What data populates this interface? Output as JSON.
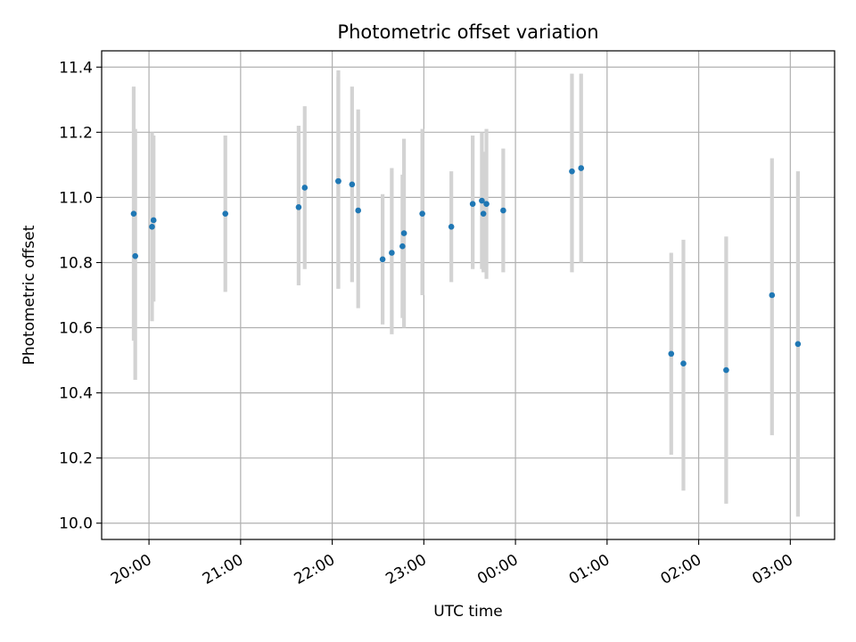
{
  "chart_data": {
    "type": "scatter",
    "title": "Photometric offset variation",
    "xlabel": "UTC time",
    "ylabel": "Photometric offset",
    "x_unit": "hh:mm UTC",
    "xlim": [
      "19:29",
      "03:29"
    ],
    "ylim": [
      9.95,
      11.45
    ],
    "grid": true,
    "x_ticks": [
      "20:00",
      "21:00",
      "22:00",
      "23:00",
      "00:00",
      "01:00",
      "02:00",
      "03:00"
    ],
    "y_ticks": [
      "10.0",
      "10.2",
      "10.4",
      "10.6",
      "10.8",
      "11.0",
      "11.2",
      "11.4"
    ],
    "colors": {
      "points": "#1f77b4",
      "error_bars": "#d3d3d3",
      "grid": "#b0b0b0"
    },
    "series": [
      {
        "points": [
          {
            "x": "19:50",
            "y": 10.95,
            "ylo": 10.56,
            "yhi": 11.34
          },
          {
            "x": "19:51",
            "y": 10.82,
            "ylo": 10.44,
            "yhi": 11.21
          },
          {
            "x": "20:02",
            "y": 10.91,
            "ylo": 10.62,
            "yhi": 11.2
          },
          {
            "x": "20:03",
            "y": 10.93,
            "ylo": 10.68,
            "yhi": 11.19
          },
          {
            "x": "20:50",
            "y": 10.95,
            "ylo": 10.71,
            "yhi": 11.19
          },
          {
            "x": "21:38",
            "y": 10.97,
            "ylo": 10.73,
            "yhi": 11.22
          },
          {
            "x": "21:42",
            "y": 11.03,
            "ylo": 10.78,
            "yhi": 11.28
          },
          {
            "x": "22:04",
            "y": 11.05,
            "ylo": 10.72,
            "yhi": 11.39
          },
          {
            "x": "22:04",
            "y": 11.05,
            "ylo": 10.72,
            "yhi": 11.37
          },
          {
            "x": "22:13",
            "y": 11.04,
            "ylo": 10.74,
            "yhi": 11.34
          },
          {
            "x": "22:17",
            "y": 10.96,
            "ylo": 10.66,
            "yhi": 11.27
          },
          {
            "x": "22:33",
            "y": 10.81,
            "ylo": 10.61,
            "yhi": 11.01
          },
          {
            "x": "22:39",
            "y": 10.83,
            "ylo": 10.58,
            "yhi": 11.09
          },
          {
            "x": "22:46",
            "y": 10.85,
            "ylo": 10.63,
            "yhi": 11.07
          },
          {
            "x": "22:47",
            "y": 10.89,
            "ylo": 10.6,
            "yhi": 11.18
          },
          {
            "x": "22:59",
            "y": 10.95,
            "ylo": 10.7,
            "yhi": 11.21
          },
          {
            "x": "23:18",
            "y": 10.91,
            "ylo": 10.74,
            "yhi": 11.08
          },
          {
            "x": "23:32",
            "y": 10.98,
            "ylo": 10.78,
            "yhi": 11.19
          },
          {
            "x": "23:38",
            "y": 10.99,
            "ylo": 10.78,
            "yhi": 11.2
          },
          {
            "x": "23:39",
            "y": 10.95,
            "ylo": 10.77,
            "yhi": 11.14
          },
          {
            "x": "23:41",
            "y": 10.98,
            "ylo": 10.75,
            "yhi": 11.21
          },
          {
            "x": "23:52",
            "y": 10.96,
            "ylo": 10.77,
            "yhi": 11.15
          },
          {
            "x": "00:37",
            "y": 11.08,
            "ylo": 10.77,
            "yhi": 11.38
          },
          {
            "x": "00:43",
            "y": 11.09,
            "ylo": 10.8,
            "yhi": 11.38
          },
          {
            "x": "01:42",
            "y": 10.52,
            "ylo": 10.21,
            "yhi": 10.83
          },
          {
            "x": "01:50",
            "y": 10.49,
            "ylo": 10.1,
            "yhi": 10.87
          },
          {
            "x": "02:18",
            "y": 10.47,
            "ylo": 10.06,
            "yhi": 10.88
          },
          {
            "x": "02:48",
            "y": 10.7,
            "ylo": 10.27,
            "yhi": 11.12
          },
          {
            "x": "03:05",
            "y": 10.55,
            "ylo": 10.02,
            "yhi": 11.08
          }
        ]
      }
    ]
  }
}
